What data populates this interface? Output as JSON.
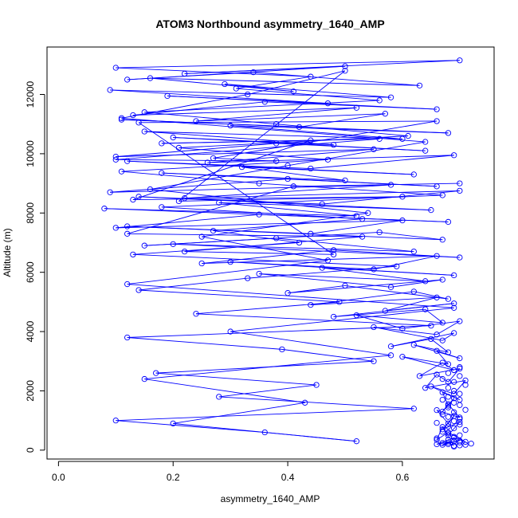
{
  "chart_data": {
    "type": "scatter",
    "title": "ATOM3 Northbound asymmetry_1640_AMP",
    "xlabel": "asymmetry_1640_AMP",
    "ylabel": "Altitude (m)",
    "xlim": [
      -0.02,
      0.76
    ],
    "ylim": [
      -300,
      13600
    ],
    "xticks": [
      "0.0",
      "0.2",
      "0.4",
      "0.6"
    ],
    "yticks": [
      "0",
      "2000",
      "4000",
      "6000",
      "8000",
      "10000",
      "12000"
    ],
    "grid": false,
    "legend": "none",
    "color": "#0000ff",
    "series": [
      {
        "style": "points-and-lines",
        "x": [
          0.69,
          0.68,
          0.67,
          0.7,
          0.66,
          0.69,
          0.71,
          0.68,
          0.66,
          0.67,
          0.68,
          0.7,
          0.67,
          0.69,
          0.68,
          0.66,
          0.7,
          0.68,
          0.67,
          0.69,
          0.68,
          0.67,
          0.7,
          0.65,
          0.69,
          0.71,
          0.64,
          0.66,
          0.68,
          0.7,
          0.63,
          0.67,
          0.69,
          0.6,
          0.68,
          0.66,
          0.7,
          0.62,
          0.68,
          0.65,
          0.58,
          0.69,
          0.67,
          0.55,
          0.66,
          0.7,
          0.6,
          0.52,
          0.67,
          0.64,
          0.48,
          0.69,
          0.57,
          0.66,
          0.44,
          0.62,
          0.68,
          0.5,
          0.4,
          0.67,
          0.58,
          0.35,
          0.64,
          0.46,
          0.69,
          0.3,
          0.55,
          0.66,
          0.25,
          0.48,
          0.7,
          0.2,
          0.62,
          0.38,
          0.15,
          0.56,
          0.67,
          0.12,
          0.44,
          0.6,
          0.1,
          0.35,
          0.68,
          0.08,
          0.52,
          0.28,
          0.65,
          0.14,
          0.46,
          0.7,
          0.22,
          0.58,
          0.09,
          0.4,
          0.66,
          0.18,
          0.5,
          0.32,
          0.62,
          0.12,
          0.44,
          0.69,
          0.26,
          0.55,
          0.1,
          0.38,
          0.64,
          0.2,
          0.48,
          0.15,
          0.6,
          0.3,
          0.68,
          0.11,
          0.42,
          0.57,
          0.24,
          0.52,
          0.13,
          0.36,
          0.66,
          0.19,
          0.47,
          0.09,
          0.58,
          0.29,
          0.41,
          0.16,
          0.63,
          0.34,
          0.12,
          0.5,
          0.22,
          0.7,
          0.1,
          0.44,
          0.31,
          0.56,
          0.15,
          0.38,
          0.61,
          0.21,
          0.47,
          0.11,
          0.35,
          0.67,
          0.18,
          0.53,
          0.27,
          0.42,
          0.13,
          0.59,
          0.33,
          0.14,
          0.49,
          0.24,
          0.65,
          0.12,
          0.39,
          0.55,
          0.17,
          0.45,
          0.28,
          0.62,
          0.1,
          0.36,
          0.52,
          0.2,
          0.43,
          0.15,
          0.58,
          0.3,
          0.69,
          0.12,
          0.47,
          0.25,
          0.54,
          0.16,
          0.4,
          0.64,
          0.11,
          0.33,
          0.5,
          0.21,
          0.6,
          0.13,
          0.44,
          0.18,
          0.56,
          0.1,
          0.38,
          0.27,
          0.66,
          0.14,
          0.48,
          0.22,
          0.53,
          0.12,
          0.41,
          0.7
        ],
        "y": [
          150,
          250,
          180,
          320,
          200,
          420,
          280,
          600,
          350,
          780,
          500,
          950,
          700,
          1150,
          900,
          1350,
          1100,
          1550,
          1300,
          1750,
          1500,
          1950,
          1700,
          2150,
          1900,
          2350,
          2100,
          2550,
          2300,
          2750,
          2500,
          2950,
          2700,
          3150,
          2900,
          3350,
          3100,
          3550,
          3300,
          3750,
          3500,
          3950,
          3700,
          4150,
          3900,
          4350,
          4100,
          4550,
          4300,
          4750,
          4500,
          4950,
          4700,
          5150,
          4900,
          5350,
          5100,
          5550,
          5300,
          5750,
          5500,
          5950,
          5700,
          6150,
          5900,
          6350,
          6100,
          6550,
          6300,
          6750,
          6500,
          6950,
          6700,
          7150,
          6900,
          7350,
          7100,
          7550,
          7300,
          7750,
          7500,
          7950,
          7700,
          8150,
          7900,
          8350,
          8100,
          8550,
          8300,
          8750,
          8500,
          8950,
          8700,
          9150,
          8900,
          9350,
          9100,
          9550,
          9300,
          9750,
          9500,
          9950,
          9700,
          10150,
          9900,
          10350,
          10100,
          10550,
          10300,
          10750,
          10500,
          10950,
          10700,
          11150,
          10900,
          11350,
          11100,
          11550,
          11300,
          11750,
          11500,
          11950,
          11700,
          12150,
          11900,
          12350,
          12100,
          12550,
          12300,
          12750,
          12500,
          12950,
          12700,
          13150,
          12900,
          12600,
          12200,
          11800,
          11400,
          11000,
          10600,
          10200,
          9800,
          9400,
          9000,
          8600,
          8200,
          7800,
          7400,
          7000,
          6600,
          6200,
          5800,
          5400,
          5000,
          4600,
          4200,
          3800,
          3400,
          3000,
          2600,
          2200,
          1800,
          1400,
          1000,
          600,
          300,
          900,
          1600,
          2400,
          3200,
          4000,
          4800,
          5600,
          6400,
          7200,
          8000,
          8800,
          9600,
          10400,
          11200,
          12000,
          12800,
          8400,
          8550,
          8450,
          10450,
          10350,
          10500,
          9800,
          9750,
          9850,
          11100,
          11050,
          6600,
          6700,
          7200,
          7300,
          8900,
          9000
        ]
      },
      {
        "style": "points-only",
        "x": [
          0.69,
          0.7,
          0.68,
          0.71,
          0.67,
          0.69,
          0.7,
          0.68,
          0.72,
          0.66,
          0.69,
          0.7,
          0.68,
          0.67,
          0.71,
          0.69,
          0.68,
          0.7,
          0.66,
          0.69,
          0.7,
          0.68,
          0.67,
          0.69,
          0.71,
          0.68,
          0.7,
          0.69,
          0.67,
          0.68,
          0.7,
          0.69,
          0.68,
          0.71,
          0.69,
          0.67,
          0.7,
          0.68,
          0.69,
          0.7
        ],
        "y": [
          120,
          160,
          200,
          180,
          240,
          300,
          260,
          350,
          220,
          400,
          450,
          500,
          560,
          620,
          680,
          740,
          800,
          860,
          920,
          980,
          1050,
          1120,
          1200,
          1280,
          1360,
          1440,
          1520,
          1600,
          1700,
          1800,
          1900,
          2000,
          2100,
          2200,
          2300,
          2400,
          2500,
          2600,
          2700,
          2800
        ]
      }
    ]
  }
}
